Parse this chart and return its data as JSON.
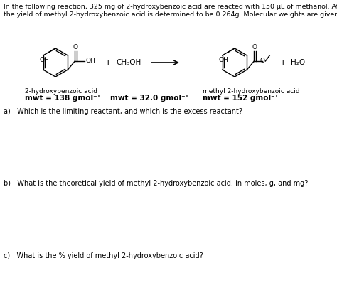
{
  "bg_color": "#ffffff",
  "header_line1": "In the following reaction, 325 mg of 2-hydroxybenzoic acid are reacted with 150 μL of methanol. After product work-up,",
  "header_line2": "the yield of methyl 2-hydroxybenzoic acid is determined to be 0.264g. Molecular weights are given.",
  "reactant_label": "2-hydroxybenzoic acid",
  "reactant_mwt": "mwt = 138 gmol⁻¹",
  "methanol_formula": "CH₃OH",
  "methanol_mwt": "mwt = 32.0 gmol⁻¹",
  "product_label": "methyl 2-hydroxybenzoic acid",
  "product_mwt": "mwt = 152 gmol⁻¹",
  "question_a": "a)   Which is the limiting reactant, and which is the excess reactant?",
  "question_b": "b)   What is the theoretical yield of methyl 2-hydroxybenzoic acid, in moles, g, and mg?",
  "question_c": "c)   What is the % yield of methyl 2-hydroxybenzoic acid?",
  "water_label": "H₂O",
  "header_fontsize": 6.8,
  "label_fontsize": 6.5,
  "mwt_fontsize": 7.5,
  "question_fontsize": 7.0,
  "small_fontsize": 6.5
}
